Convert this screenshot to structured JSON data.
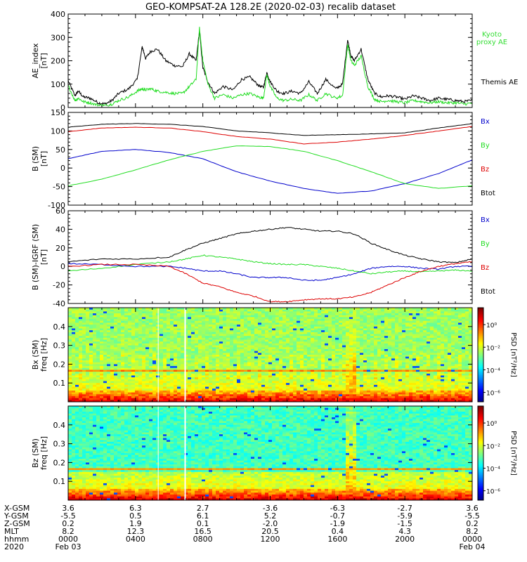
{
  "title": "GEO-KOMPSAT-2A 128.2E (2020-02-03) recalib dataset",
  "colors": {
    "black": "#000000",
    "green": "#22dd22",
    "blue": "#0000cc",
    "red": "#dd0000",
    "kyoto": "#33dd33"
  },
  "chart_data": [
    {
      "type": "line",
      "panel": "ae",
      "ylabel": [
        "AE_index",
        "[nT]"
      ],
      "ylim": [
        0,
        400
      ],
      "yticks": [
        0,
        100,
        200,
        300,
        400
      ],
      "xlim": [
        0,
        24
      ],
      "legend": [
        "Kyoto",
        "proxy AE",
        "Themis AE"
      ],
      "series": [
        {
          "name": "Themis AE",
          "color": "#000000",
          "x": [
            0,
            0.4,
            0.6,
            0.9,
            1.3,
            1.8,
            2.2,
            2.6,
            3.0,
            3.6,
            4.1,
            4.4,
            4.6,
            4.9,
            5.3,
            5.8,
            6.3,
            6.8,
            7.2,
            7.6,
            7.8,
            8.0,
            8.3,
            8.7,
            9.2,
            9.8,
            10.3,
            10.8,
            11.3,
            11.6,
            11.8,
            12.0,
            12.4,
            12.8,
            13.3,
            13.8,
            14.3,
            14.8,
            15.3,
            15.9,
            16.3,
            16.6,
            16.8,
            17.0,
            17.4,
            17.8,
            18.2,
            18.6,
            19.0,
            19.5,
            20.0,
            20.5,
            21.0,
            21.5,
            22.0,
            22.5,
            23.0,
            23.5,
            24
          ],
          "y": [
            115,
            50,
            70,
            45,
            40,
            20,
            15,
            30,
            60,
            80,
            120,
            260,
            210,
            240,
            250,
            200,
            180,
            175,
            230,
            200,
            330,
            170,
            110,
            60,
            90,
            75,
            120,
            130,
            95,
            85,
            150,
            110,
            70,
            60,
            70,
            60,
            110,
            60,
            120,
            80,
            100,
            290,
            220,
            200,
            250,
            120,
            60,
            45,
            50,
            45,
            35,
            50,
            40,
            30,
            40,
            35,
            30,
            25,
            30
          ]
        },
        {
          "name": "Kyoto proxy AE",
          "color": "#22dd22",
          "x": [
            0,
            0.4,
            0.6,
            0.9,
            1.3,
            1.8,
            2.2,
            2.6,
            3.0,
            3.6,
            4.1,
            4.4,
            4.6,
            4.9,
            5.3,
            5.8,
            6.3,
            6.8,
            7.2,
            7.6,
            7.8,
            8.0,
            8.3,
            8.7,
            9.2,
            9.8,
            10.3,
            10.8,
            11.3,
            11.6,
            11.8,
            12.0,
            12.4,
            12.8,
            13.3,
            13.8,
            14.3,
            14.8,
            15.3,
            15.9,
            16.3,
            16.6,
            16.8,
            17.0,
            17.4,
            17.8,
            18.2,
            18.6,
            19.0,
            19.5,
            20.0,
            20.5,
            21.0,
            21.5,
            22.0,
            22.5,
            23.0,
            23.5,
            24
          ],
          "y": [
            95,
            30,
            40,
            25,
            20,
            10,
            8,
            15,
            30,
            45,
            70,
            80,
            75,
            80,
            70,
            65,
            60,
            60,
            90,
            120,
            340,
            200,
            100,
            40,
            55,
            40,
            55,
            60,
            45,
            40,
            140,
            90,
            40,
            30,
            35,
            30,
            55,
            30,
            60,
            40,
            50,
            270,
            200,
            180,
            220,
            90,
            35,
            25,
            30,
            25,
            20,
            30,
            25,
            20,
            25,
            20,
            20,
            15,
            18
          ]
        }
      ]
    },
    {
      "type": "line",
      "panel": "b",
      "ylabel": [
        "B (SM)",
        "[nT]"
      ],
      "ylim": [
        -100,
        150
      ],
      "yticks": [
        -100,
        -50,
        0,
        50,
        100,
        150
      ],
      "xlim": [
        0,
        24
      ],
      "legend": [
        "Bx",
        "By",
        "Bz",
        "Btot"
      ],
      "series": [
        {
          "name": "Btot",
          "color": "#000000",
          "x": [
            0,
            2,
            4,
            6,
            8,
            10,
            12,
            14,
            16,
            18,
            20,
            22,
            24
          ],
          "y": [
            110,
            118,
            120,
            118,
            112,
            100,
            95,
            88,
            90,
            92,
            95,
            108,
            120
          ]
        },
        {
          "name": "Bz",
          "color": "#dd0000",
          "x": [
            0,
            2,
            4,
            6,
            8,
            10,
            12,
            14,
            16,
            18,
            20,
            22,
            24
          ],
          "y": [
            98,
            108,
            110,
            108,
            98,
            85,
            78,
            65,
            70,
            78,
            88,
            100,
            112
          ]
        },
        {
          "name": "Bx",
          "color": "#0000cc",
          "x": [
            0,
            2,
            4,
            6,
            8,
            10,
            12,
            14,
            16,
            18,
            20,
            22,
            24
          ],
          "y": [
            25,
            45,
            50,
            42,
            25,
            -10,
            -35,
            -55,
            -68,
            -62,
            -42,
            -15,
            22
          ]
        },
        {
          "name": "By",
          "color": "#22dd22",
          "x": [
            0,
            2,
            4,
            6,
            8,
            10,
            12,
            14,
            16,
            18,
            20,
            22,
            24
          ],
          "y": [
            -48,
            -30,
            -5,
            22,
            45,
            60,
            58,
            45,
            20,
            -10,
            -42,
            -55,
            -48
          ]
        }
      ]
    },
    {
      "type": "line",
      "panel": "db",
      "ylabel": [
        "B (SM)-IGRF (SM)",
        "[nT]"
      ],
      "ylim": [
        -40,
        60
      ],
      "yticks": [
        -40,
        -20,
        0,
        20,
        40,
        60
      ],
      "xlim": [
        0,
        24
      ],
      "legend": [
        "Bx",
        "By",
        "Bz",
        "Btot"
      ],
      "series": [
        {
          "name": "Btot",
          "color": "#000000",
          "x": [
            0,
            2,
            4,
            6,
            7,
            8,
            9,
            10,
            11,
            12,
            13,
            14,
            15,
            16,
            17,
            18,
            19,
            20,
            21,
            22,
            23,
            24
          ],
          "y": [
            5,
            8,
            8,
            10,
            18,
            25,
            30,
            35,
            38,
            40,
            42,
            40,
            38,
            38,
            35,
            25,
            18,
            12,
            8,
            5,
            4,
            8
          ]
        },
        {
          "name": "By",
          "color": "#22dd22",
          "x": [
            0,
            2,
            4,
            6,
            7,
            8,
            9,
            10,
            11,
            12,
            13,
            14,
            15,
            16,
            17,
            18,
            19,
            20,
            21,
            22,
            23,
            24
          ],
          "y": [
            -5,
            -2,
            2,
            5,
            8,
            12,
            10,
            8,
            5,
            3,
            2,
            2,
            0,
            -2,
            -5,
            -8,
            -6,
            -5,
            -6,
            -5,
            -4,
            -5
          ]
        },
        {
          "name": "Bx",
          "color": "#0000cc",
          "x": [
            0,
            2,
            4,
            6,
            7,
            8,
            9,
            10,
            11,
            12,
            13,
            14,
            15,
            16,
            17,
            18,
            19,
            20,
            21,
            22,
            23,
            24
          ],
          "y": [
            3,
            2,
            0,
            0,
            -2,
            -5,
            -5,
            -8,
            -12,
            -12,
            -12,
            -15,
            -15,
            -12,
            -8,
            -2,
            0,
            0,
            -2,
            -3,
            0,
            0
          ]
        },
        {
          "name": "Bz",
          "color": "#dd0000",
          "x": [
            0,
            2,
            4,
            6,
            7,
            8,
            9,
            10,
            11,
            12,
            13,
            14,
            15,
            16,
            17,
            18,
            19,
            20,
            21,
            22,
            23,
            24
          ],
          "y": [
            0,
            2,
            2,
            0,
            -8,
            -18,
            -22,
            -28,
            -32,
            -38,
            -38,
            -36,
            -35,
            -35,
            -33,
            -28,
            -20,
            -12,
            -5,
            0,
            3,
            5
          ]
        }
      ]
    },
    {
      "type": "heatmap",
      "panel": "bx_spec",
      "ylabel": [
        "Bx (SM)",
        "freq [Hz]"
      ],
      "yticks": [
        0.1,
        0.2,
        0.3,
        0.4
      ],
      "ylim": [
        0,
        0.5
      ],
      "colorbar": {
        "label": "PSD [nT²/Hz]",
        "ticks": [
          "10⁰",
          "10⁻²",
          "10⁻⁴",
          "10⁻⁶"
        ]
      }
    },
    {
      "type": "heatmap",
      "panel": "bz_spec",
      "ylabel": [
        "Bz (SM)",
        "freq [Hz]"
      ],
      "yticks": [
        0.1,
        0.2,
        0.3,
        0.4
      ],
      "ylim": [
        0,
        0.5
      ],
      "colorbar": {
        "label": "PSD [nT²/Hz]",
        "ticks": [
          "10⁰",
          "10⁻²",
          "10⁻⁴",
          "10⁻⁶"
        ]
      }
    }
  ],
  "footer": {
    "labels": [
      "X-GSM",
      "Y-GSM",
      "Z-GSM",
      "MLT",
      "hhmm",
      "2020"
    ],
    "columns": [
      {
        "x": 0,
        "values": [
          "3.6",
          "-5.5",
          "0.2",
          "8.2",
          "0000",
          "Feb 03"
        ]
      },
      {
        "x": 4,
        "values": [
          "6.3",
          "0.5",
          "1.9",
          "12.3",
          "0400",
          ""
        ]
      },
      {
        "x": 8,
        "values": [
          "2.7",
          "6.1",
          "0.1",
          "16.5",
          "0800",
          ""
        ]
      },
      {
        "x": 12,
        "values": [
          "-3.6",
          "5.2",
          "-2.0",
          "20.5",
          "1200",
          ""
        ]
      },
      {
        "x": 16,
        "values": [
          "-6.3",
          "-0.7",
          "-1.9",
          "0.4",
          "1600",
          ""
        ]
      },
      {
        "x": 20,
        "values": [
          "-2.7",
          "-5.9",
          "-1.5",
          "4.3",
          "2000",
          ""
        ]
      },
      {
        "x": 24,
        "values": [
          "3.6",
          "-5.5",
          "0.2",
          "8.2",
          "0000",
          "Feb 04"
        ]
      }
    ]
  }
}
